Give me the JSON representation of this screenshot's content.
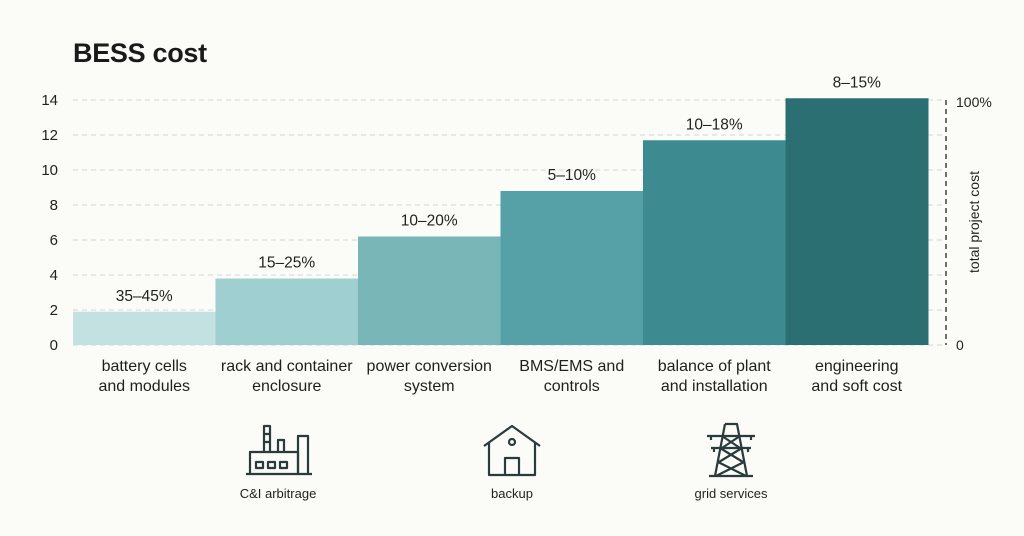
{
  "title": "BESS cost",
  "chart_data": {
    "type": "bar",
    "categories": [
      "battery cells and modules",
      "rack and container enclosure",
      "power conversion system",
      "BMS/EMS and controls",
      "balance of plant and installation",
      "engineering and soft cost"
    ],
    "category_lines": [
      [
        "battery cells",
        "and modules"
      ],
      [
        "rack and container",
        "enclosure"
      ],
      [
        "power conversion",
        "system"
      ],
      [
        "BMS/EMS and",
        "controls"
      ],
      [
        "balance of plant",
        "and installation"
      ],
      [
        "engineering",
        "and soft cost"
      ]
    ],
    "values": [
      1.9,
      3.8,
      6.2,
      8.8,
      11.7,
      14.1
    ],
    "data_labels": [
      "35–45%",
      "15–25%",
      "10–20%",
      "5–10%",
      "10–18%",
      "8–15%"
    ],
    "colors": [
      "#c3e1e1",
      "#9fcfd1",
      "#79b6b8",
      "#55a1a7",
      "#3d8b90",
      "#2b6f73"
    ],
    "ylim": [
      0,
      14
    ],
    "yticks": [
      0,
      2,
      4,
      6,
      8,
      10,
      12,
      14
    ],
    "grid": true,
    "secondary_axis": {
      "label": "total project cost",
      "top": "100%",
      "bottom": "0"
    }
  },
  "icons": [
    {
      "name": "factory-icon",
      "label": "C&I arbitrage"
    },
    {
      "name": "house-icon",
      "label": "backup"
    },
    {
      "name": "transmission-tower-icon",
      "label": "grid services"
    }
  ]
}
